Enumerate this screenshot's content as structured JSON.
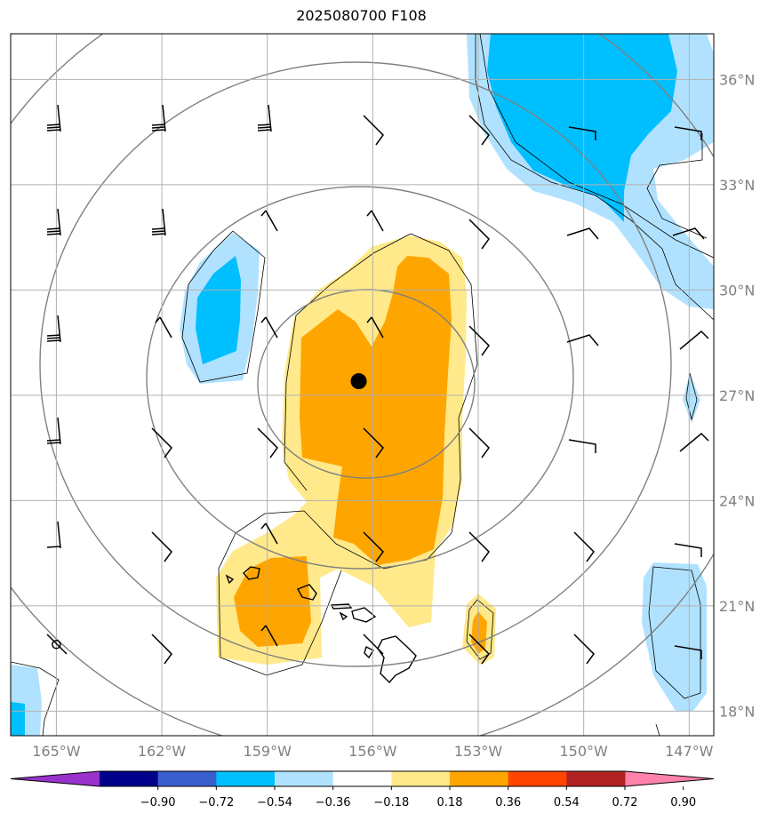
{
  "title": "2025080700 F108",
  "map": {
    "lon_range": [
      -166.3,
      -146.3
    ],
    "lat_range": [
      17.3,
      37.3
    ],
    "lon_ticks": [
      {
        "value": -165,
        "label": "165°W"
      },
      {
        "value": -162,
        "label": "162°W"
      },
      {
        "value": -159,
        "label": "159°W"
      },
      {
        "value": -156,
        "label": "156°W"
      },
      {
        "value": -153,
        "label": "153°W"
      },
      {
        "value": -150,
        "label": "150°W"
      },
      {
        "value": -147,
        "label": "147°W"
      }
    ],
    "lat_ticks": [
      {
        "value": 18,
        "label": "18°N"
      },
      {
        "value": 21,
        "label": "21°N"
      },
      {
        "value": 24,
        "label": "24°N"
      },
      {
        "value": 27,
        "label": "27°N"
      },
      {
        "value": 30,
        "label": "30°N"
      },
      {
        "value": 33,
        "label": "33°N"
      },
      {
        "value": 36,
        "label": "36°N"
      }
    ],
    "grid": true,
    "center_marker": {
      "lon": -156.4,
      "lat": 27.4
    },
    "small_marker": {
      "lon": -165.0,
      "lat": 19.9
    }
  },
  "colorbar": {
    "colors": [
      "#9932cc",
      "#00008b",
      "#3a5fcd",
      "#00bfff",
      "#b0e2ff",
      "#ffffff",
      "#ffe98a",
      "#ffa500",
      "#ff4500",
      "#b22222",
      "#ff82ab"
    ],
    "labels": [
      "−0.90",
      "−0.72",
      "−0.54",
      "−0.36",
      "−0.18",
      "0.18",
      "0.36",
      "0.54",
      "0.72",
      "0.90"
    ],
    "extend": "both"
  },
  "colors": {
    "light_blue": "#b0e2ff",
    "deep_sky_blue": "#00bfff",
    "light_yellow": "#ffe98a",
    "orange": "#ffa500",
    "range_rings": "#808080",
    "grid": "#b0b0b0"
  }
}
